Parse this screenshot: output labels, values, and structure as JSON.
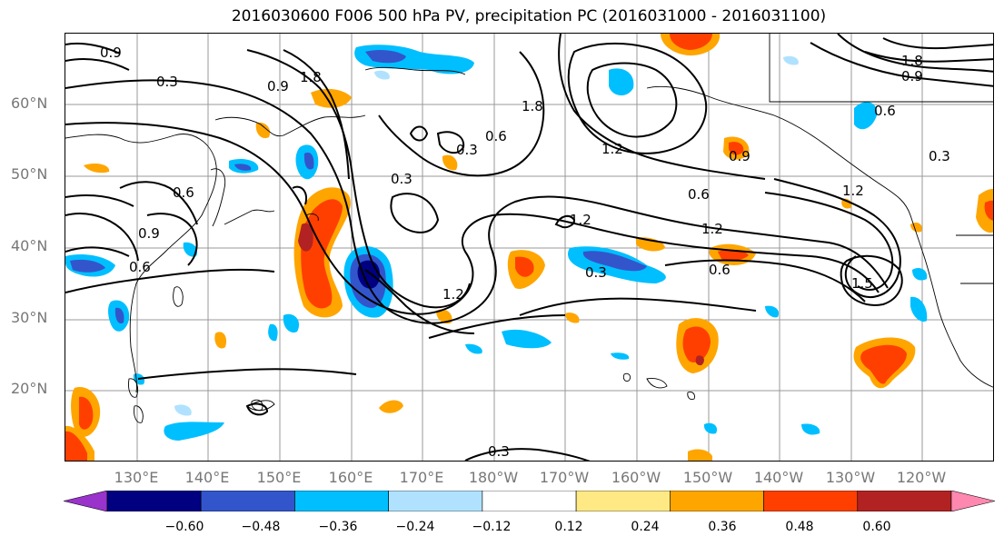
{
  "title": "2016030600 F006 500 hPa PV, precipitation PC (2016031000 - 2016031100)",
  "axes": {
    "lat_labels": [
      "60°N",
      "50°N",
      "40°N",
      "30°N",
      "20°N"
    ],
    "lon_labels": [
      "130°E",
      "140°E",
      "150°E",
      "160°E",
      "170°E",
      "180°W",
      "170°W",
      "160°W",
      "150°W",
      "140°W",
      "130°W",
      "120°W"
    ]
  },
  "colorbar": {
    "colors": [
      "#9933cc",
      "#000080",
      "#3355cc",
      "#00bfff",
      "#b0e2ff",
      "#ffffff",
      "#ffe985",
      "#ffa500",
      "#ff3f00",
      "#b22222",
      "#ff88b0"
    ],
    "ticks": [
      "−0.60",
      "−0.48",
      "−0.36",
      "−0.24",
      "−0.12",
      "0.12",
      "0.24",
      "0.36",
      "0.48",
      "0.60"
    ]
  },
  "contour_labels": [
    "0.9",
    "0.3",
    "1.8",
    "0.9",
    "0.6",
    "0.3",
    "0.6",
    "0.3",
    "1.8",
    "1.2",
    "0.6",
    "0.9",
    "0.3",
    "1.2",
    "1.2",
    "0.6",
    "1.2",
    "0.3",
    "0.6",
    "1.5",
    "0.9",
    "0.3",
    "0.6",
    "0.9",
    "1.2",
    "1.8"
  ]
}
